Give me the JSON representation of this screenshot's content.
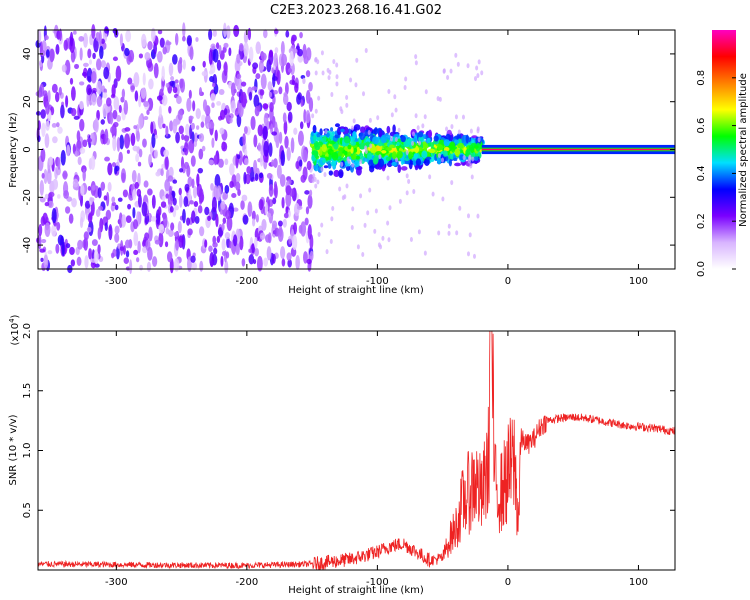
{
  "title": "C2E3.2023.268.16.41.G02",
  "chart_data": [
    {
      "type": "heatmap",
      "xlabel": "Height of straight line (km)",
      "ylabel": "Frequency (Hz)",
      "xlim": [
        -360,
        128
      ],
      "ylim": [
        -50,
        50
      ],
      "xticks": [
        -300,
        -200,
        -100,
        0,
        100
      ],
      "yticks": [
        -40,
        -20,
        0,
        20,
        40
      ],
      "colorbar": {
        "label": "Normalized spectral amplitude",
        "range": [
          0,
          1
        ],
        "ticks": [
          0.0,
          0.2,
          0.4,
          0.6,
          0.8
        ],
        "colors": [
          "#ffffff",
          "#d8b4ff",
          "#7a00ff",
          "#0000ff",
          "#00e0ff",
          "#00ff00",
          "#ffff00",
          "#ff8000",
          "#ff0000",
          "#ff00c0"
        ]
      },
      "regions": [
        {
          "x": [
            -360,
            -150
          ],
          "freq_spread": 50,
          "level": 0.15,
          "description": "broadband noise"
        },
        {
          "x": [
            -150,
            -20
          ],
          "freq_spread": 10,
          "level": 0.35,
          "description": "near-zero Doppler, widening spread"
        },
        {
          "x": [
            -20,
            128
          ],
          "freq_spread": 1.5,
          "level": 0.9,
          "description": "narrow line at 0 Hz"
        }
      ]
    },
    {
      "type": "line",
      "xlabel": "Height of straight line (km)",
      "ylabel": "SNR (10 * v/v)",
      "y_multiplier": "(x10",
      "y_multiplier_exp": "4",
      "y_multiplier_close": ")",
      "xlim": [
        -360,
        128
      ],
      "ylim": [
        0,
        20000
      ],
      "xticks": [
        -300,
        -200,
        -100,
        0,
        100
      ],
      "ytick_labels": [
        "0.5",
        "1.0",
        "1.5",
        "2.0"
      ],
      "ytick_values": [
        5000,
        10000,
        15000,
        20000
      ],
      "color": "#ee2222",
      "series": [
        {
          "x": [
            -360,
            -300,
            -250,
            -200,
            -150,
            -120,
            -100,
            -90,
            -80,
            -70,
            -60,
            -50,
            -45,
            -40,
            -35,
            -30,
            -25,
            -20,
            -15,
            -13,
            -10,
            -5,
            0,
            5,
            8,
            10,
            15,
            20,
            25,
            30,
            40,
            50,
            60,
            70,
            80,
            90,
            100,
            110,
            128
          ],
          "values": [
            500,
            450,
            400,
            380,
            500,
            900,
            1500,
            2000,
            2200,
            1500,
            800,
            1000,
            2500,
            3500,
            5500,
            6500,
            7500,
            6000,
            9000,
            20000,
            7000,
            6500,
            8000,
            9000,
            4000,
            11000,
            10500,
            11000,
            12000,
            12500,
            12700,
            12800,
            12700,
            12500,
            12300,
            12100,
            12000,
            11900,
            11600
          ]
        }
      ]
    }
  ]
}
